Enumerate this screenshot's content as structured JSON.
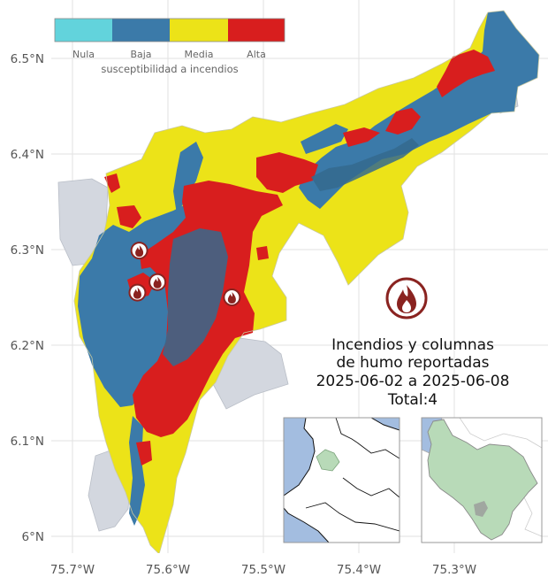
{
  "axes": {
    "lat_ticks": [
      "6.5°N",
      "6.4°N",
      "6.3°N",
      "6.2°N",
      "6.1°N",
      "6°N"
    ],
    "lon_ticks": [
      "75.7°W",
      "75.6°W",
      "75.5°W",
      "75.4°W",
      "75.3°W"
    ]
  },
  "legend": {
    "title": "susceptibilidad a incendios",
    "items": [
      {
        "label": "Nula",
        "color": "#62d3dc"
      },
      {
        "label": "Baja",
        "color": "#3b7aa9"
      },
      {
        "label": "Media",
        "color": "#ece318"
      },
      {
        "label": "Alta",
        "color": "#d81e1e"
      }
    ]
  },
  "info": {
    "line1": "Incendios y columnas",
    "line2": "de humo reportadas",
    "line3": "2025-06-02 a 2025-06-08",
    "total": "Total:4",
    "icon": "fire-icon"
  },
  "fires": [
    {
      "lon": -75.63,
      "lat": 6.299
    },
    {
      "lon": -75.632,
      "lat": 6.255
    },
    {
      "lon": -75.611,
      "lat": 6.266
    },
    {
      "lon": -75.533,
      "lat": 6.25
    }
  ],
  "colors": {
    "outside": "#d3d7df",
    "water": "#a3bde0",
    "highlight": "#b8dab8",
    "fire_marker": "#8a2320"
  }
}
